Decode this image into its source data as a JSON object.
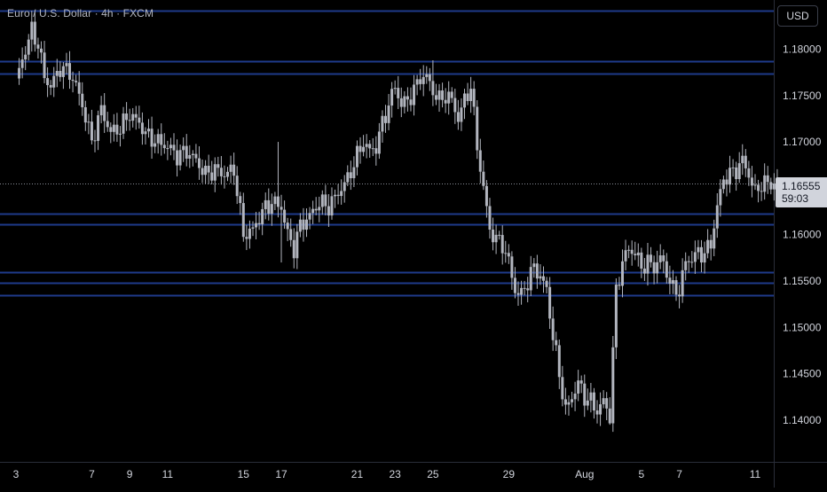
{
  "title": "Euro / U.S. Dollar · 4h · FXCM",
  "currency_label": "USD",
  "last_price": {
    "price": "1.16555",
    "countdown": "59:03"
  },
  "colors": {
    "background": "#000000",
    "candle": "#b2b5be",
    "level_line": "#1e3a8a",
    "axis_text": "#d1d4dc",
    "grid_border": "#2a2e39",
    "price_tag_bg": "#d1d4dc"
  },
  "chart_data": {
    "type": "candlestick",
    "interval": "4h",
    "y_ticks": [
      "1.18000",
      "1.17500",
      "1.17000",
      "1.16500",
      "1.16000",
      "1.15500",
      "1.15000",
      "1.14500",
      "1.14000"
    ],
    "y_tick_values": [
      1.18,
      1.175,
      1.17,
      1.165,
      1.16,
      1.155,
      1.15,
      1.145,
      1.14
    ],
    "ylim": [
      1.1355,
      1.1853
    ],
    "x_ticks": [
      "3",
      "7",
      "9",
      "11",
      "15",
      "17",
      "21",
      "23",
      "25",
      "29",
      "Aug",
      "5",
      "7",
      "11"
    ],
    "x_tick_index": [
      0,
      24,
      36,
      48,
      72,
      84,
      108,
      120,
      132,
      156,
      180,
      198,
      210,
      234
    ],
    "x_count": 242,
    "horizontal_levels": [
      1.1842,
      1.1787,
      1.1774,
      1.1623,
      1.1611,
      1.156,
      1.1548,
      1.1535
    ],
    "current_price": 1.16555,
    "anchors": [
      [
        0,
        1.1765
      ],
      [
        3,
        1.18
      ],
      [
        5,
        1.182
      ],
      [
        7,
        1.1805
      ],
      [
        9,
        1.177
      ],
      [
        11,
        1.176
      ],
      [
        14,
        1.178
      ],
      [
        17,
        1.1775
      ],
      [
        19,
        1.176
      ],
      [
        21,
        1.174
      ],
      [
        24,
        1.17
      ],
      [
        27,
        1.1735
      ],
      [
        30,
        1.171
      ],
      [
        33,
        1.1715
      ],
      [
        36,
        1.173
      ],
      [
        39,
        1.172
      ],
      [
        42,
        1.1705
      ],
      [
        45,
        1.17
      ],
      [
        48,
        1.1695
      ],
      [
        51,
        1.1685
      ],
      [
        54,
        1.169
      ],
      [
        57,
        1.168
      ],
      [
        60,
        1.1665
      ],
      [
        63,
        1.167
      ],
      [
        66,
        1.1665
      ],
      [
        69,
        1.167
      ],
      [
        72,
        1.16
      ],
      [
        75,
        1.1605
      ],
      [
        78,
        1.1625
      ],
      [
        81,
        1.1635
      ],
      [
        84,
        1.163
      ],
      [
        86,
        1.16
      ],
      [
        88,
        1.1585
      ],
      [
        90,
        1.161
      ],
      [
        93,
        1.162
      ],
      [
        96,
        1.1635
      ],
      [
        99,
        1.163
      ],
      [
        102,
        1.1645
      ],
      [
        105,
        1.166
      ],
      [
        108,
        1.1685
      ],
      [
        110,
        1.17
      ],
      [
        112,
        1.169
      ],
      [
        114,
        1.1695
      ],
      [
        116,
        1.172
      ],
      [
        118,
        1.174
      ],
      [
        120,
        1.176
      ],
      [
        122,
        1.174
      ],
      [
        124,
        1.1745
      ],
      [
        126,
        1.1755
      ],
      [
        128,
        1.177
      ],
      [
        130,
        1.177
      ],
      [
        132,
        1.1755
      ],
      [
        134,
        1.1745
      ],
      [
        136,
        1.175
      ],
      [
        138,
        1.1745
      ],
      [
        140,
        1.1725
      ],
      [
        142,
        1.1745
      ],
      [
        144,
        1.176
      ],
      [
        146,
        1.1695
      ],
      [
        148,
        1.165
      ],
      [
        150,
        1.1605
      ],
      [
        152,
        1.1595
      ],
      [
        154,
        1.159
      ],
      [
        156,
        1.157
      ],
      [
        158,
        1.154
      ],
      [
        160,
        1.1535
      ],
      [
        162,
        1.155
      ],
      [
        164,
        1.1565
      ],
      [
        166,
        1.1555
      ],
      [
        168,
        1.154
      ],
      [
        170,
        1.149
      ],
      [
        172,
        1.145
      ],
      [
        174,
        1.141
      ],
      [
        176,
        1.1425
      ],
      [
        178,
        1.144
      ],
      [
        180,
        1.1425
      ],
      [
        182,
        1.142
      ],
      [
        184,
        1.141
      ],
      [
        186,
        1.142
      ],
      [
        188,
        1.1405
      ],
      [
        190,
        1.154
      ],
      [
        192,
        1.157
      ],
      [
        194,
        1.1585
      ],
      [
        196,
        1.158
      ],
      [
        198,
        1.1565
      ],
      [
        200,
        1.157
      ],
      [
        202,
        1.1565
      ],
      [
        204,
        1.1575
      ],
      [
        206,
        1.156
      ],
      [
        208,
        1.154
      ],
      [
        210,
        1.154
      ],
      [
        212,
        1.157
      ],
      [
        214,
        1.1575
      ],
      [
        216,
        1.158
      ],
      [
        218,
        1.158
      ],
      [
        220,
        1.159
      ],
      [
        222,
        1.163
      ],
      [
        224,
        1.166
      ],
      [
        226,
        1.1665
      ],
      [
        228,
        1.167
      ],
      [
        230,
        1.168
      ],
      [
        232,
        1.1665
      ],
      [
        234,
        1.1645
      ],
      [
        236,
        1.1655
      ]
    ]
  }
}
